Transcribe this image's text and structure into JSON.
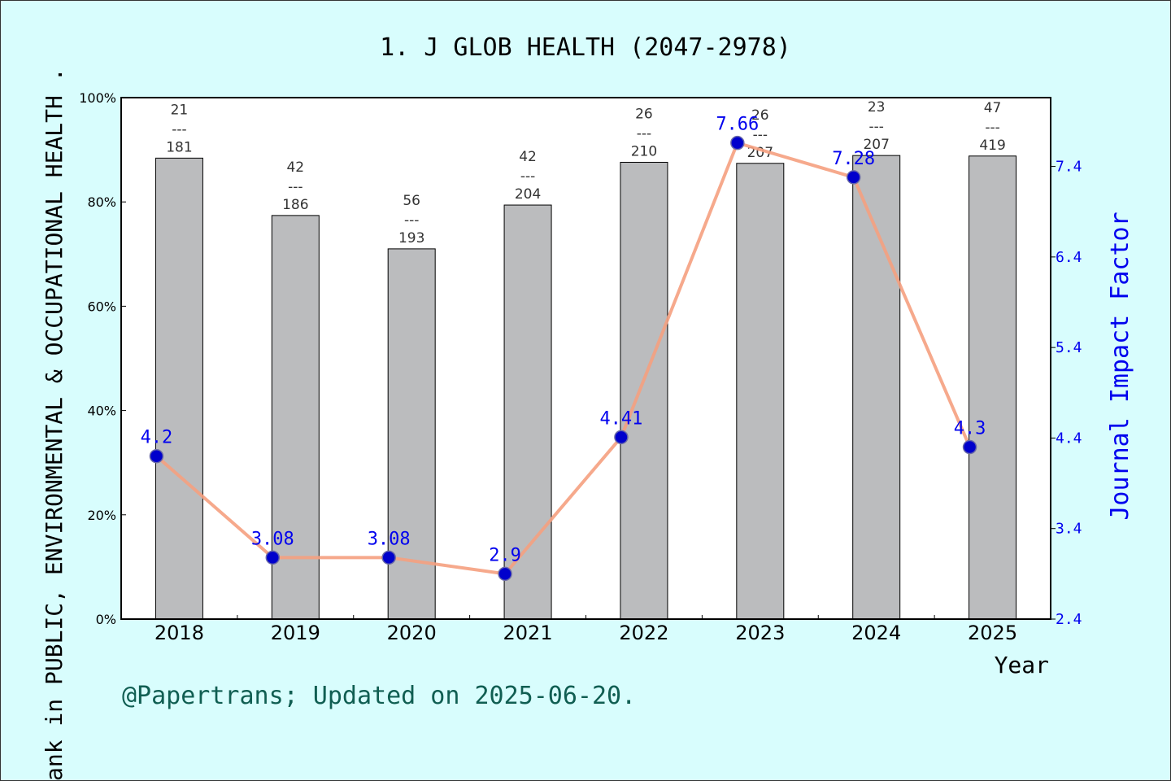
{
  "title": "1. J GLOB HEALTH (2047-2978)",
  "credit": "@Papertrans; Updated on 2025-06-20.",
  "chart_data": {
    "type": "bar",
    "categories": [
      "2018",
      "2019",
      "2020",
      "2021",
      "2022",
      "2023",
      "2024",
      "2025"
    ],
    "xlabel": "Year",
    "ylabel_left": "ank in PUBLIC, ENVIRONMENTAL & OCCUPATIONAL HEALTH .",
    "ylabel_right": "Journal Impact Factor",
    "left_axis": {
      "ticks": [
        "0%",
        "20%",
        "40%",
        "60%",
        "80%",
        "100%"
      ],
      "range": [
        0,
        100
      ]
    },
    "right_axis": {
      "ticks": [
        "2.4",
        "3.4",
        "4.4",
        "5.4",
        "6.4",
        "7.4"
      ],
      "range": [
        2.4,
        8.16
      ]
    },
    "bars": {
      "percentile": [
        88.4,
        77.4,
        71.0,
        79.4,
        87.6,
        87.4,
        88.9,
        88.8
      ],
      "rank_labels": [
        {
          "top": "21",
          "sep": "---",
          "bottom": "181"
        },
        {
          "top": "42",
          "sep": "---",
          "bottom": "186"
        },
        {
          "top": "56",
          "sep": "---",
          "bottom": "193"
        },
        {
          "top": "42",
          "sep": "---",
          "bottom": "204"
        },
        {
          "top": "26",
          "sep": "---",
          "bottom": "210"
        },
        {
          "top": "26",
          "sep": "---",
          "bottom": "207"
        },
        {
          "top": "23",
          "sep": "---",
          "bottom": "207"
        },
        {
          "top": "47",
          "sep": "---",
          "bottom": "419"
        }
      ]
    },
    "impact_factor": {
      "values": [
        4.2,
        3.08,
        3.08,
        2.9,
        4.41,
        7.66,
        7.28,
        4.3
      ],
      "labels": [
        "4.2",
        "3.08",
        "3.08",
        "2.9",
        "4.41",
        "7.66",
        "7.28",
        "4.3"
      ]
    },
    "colors": {
      "bar": "#bbbcbe",
      "line": "#f5a080",
      "marker": "#0000cc",
      "right_axis": "#0000ee",
      "background": "#d8fdfd",
      "credit": "#105e52"
    }
  }
}
